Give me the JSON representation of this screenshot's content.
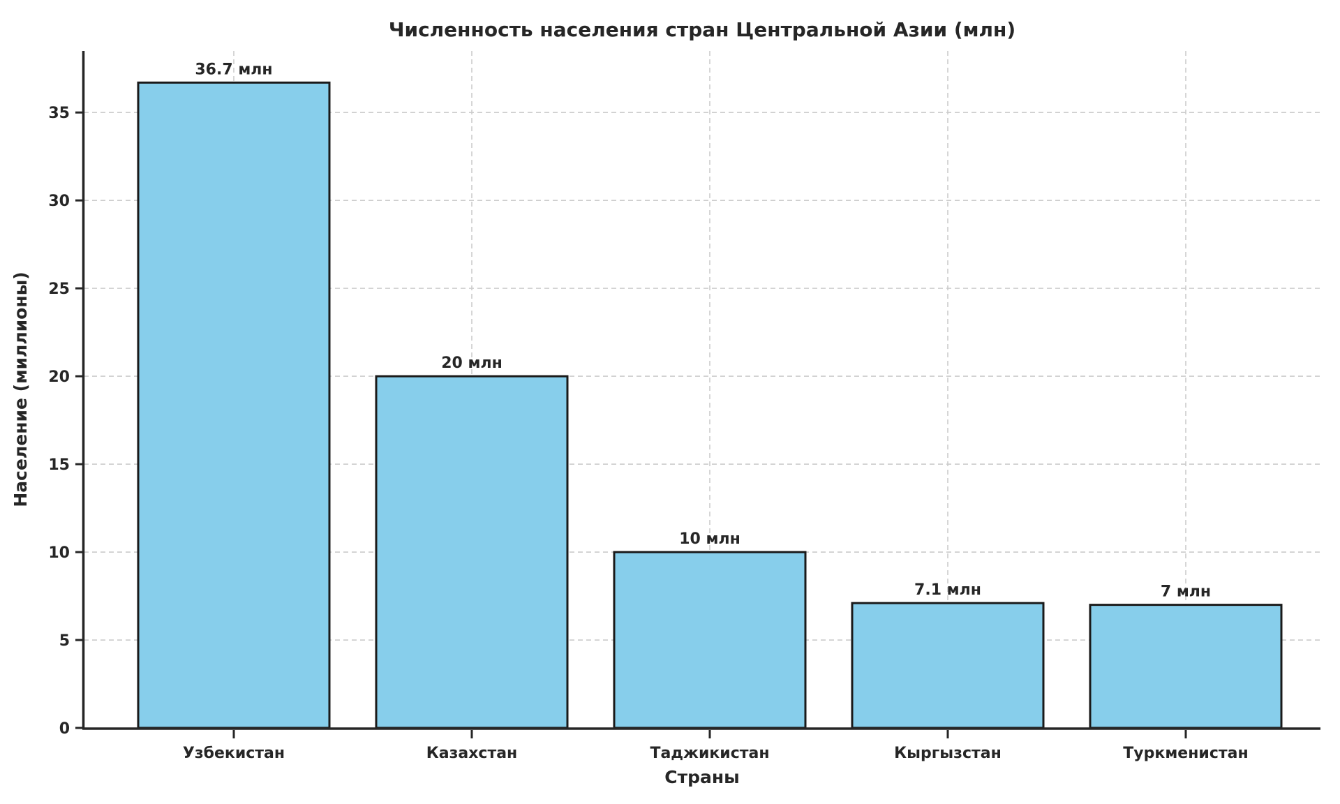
{
  "chart_data": {
    "type": "bar",
    "title": "Численность населения стран Центральной Азии (млн)",
    "xlabel": "Страны",
    "ylabel": "Население (миллионы)",
    "categories": [
      "Узбекистан",
      "Казахстан",
      "Таджикистан",
      "Кыргызстан",
      "Туркменистан"
    ],
    "values": [
      36.7,
      20,
      10,
      7.1,
      7
    ],
    "bar_labels": [
      "36.7 млн",
      "20 млн",
      "10 млн",
      "7.1 млн",
      "7 млн"
    ],
    "yticks": [
      0,
      5,
      10,
      15,
      20,
      25,
      30,
      35
    ],
    "ylim": [
      0,
      38.5
    ],
    "grid": true,
    "legend": "none",
    "bar_color": "#87CEEB",
    "bar_edge_color": "#1a1a1a",
    "grid_color": "#cccccc",
    "spine_color": "#262626",
    "text_color": "#262626",
    "background": "#ffffff"
  }
}
